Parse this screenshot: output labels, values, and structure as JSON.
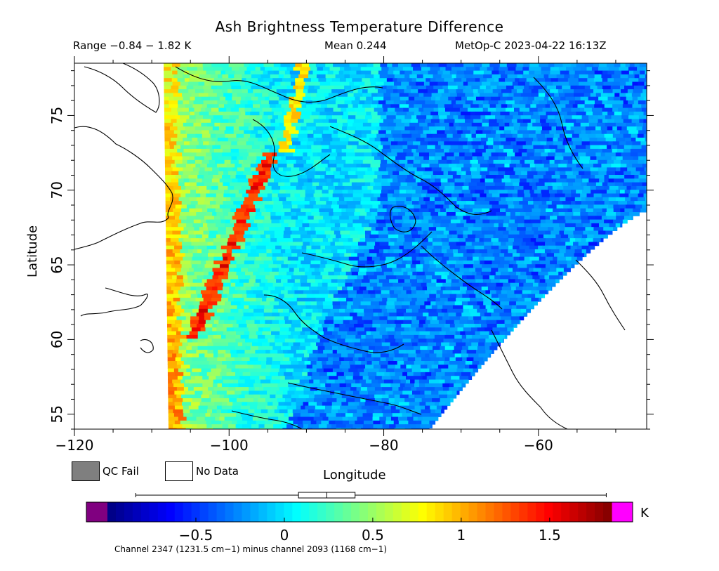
{
  "title": "Ash Brightness Temperature Difference",
  "header": {
    "range": "Range −0.84 − 1.82 K",
    "mean": "Mean 0.244",
    "satellite": "MetOp-C 2023-04-22 16:13Z"
  },
  "legend": {
    "qc_fail": "QC Fail",
    "no_data": "No Data",
    "qc_fail_color": "#7f7f7f",
    "no_data_color": "#ffffff"
  },
  "chart_data": {
    "type": "heatmap",
    "xlabel": "Longitude",
    "ylabel": "Latitude",
    "xlim": [
      -120,
      -46
    ],
    "ylim": [
      54,
      78.5
    ],
    "x_ticks": [
      -120,
      -100,
      -80,
      -60
    ],
    "x_tick_labels": [
      "−120",
      "−100",
      "−80",
      "−60"
    ],
    "y_ticks": [
      55,
      60,
      65,
      70,
      75
    ],
    "y_tick_labels": [
      "55",
      "60",
      "65",
      "70",
      "75"
    ],
    "value_range": [
      -0.84,
      1.82
    ],
    "mean": 0.244,
    "colorbar": {
      "min": -1.0,
      "max": 1.85,
      "ticks": [
        -0.5,
        0,
        0.5,
        1,
        1.5
      ],
      "tick_labels": [
        "−0.5",
        "0",
        "0.5",
        "1",
        "1.5"
      ],
      "unit": "K",
      "under_color": "#800080",
      "over_color": "#ff00ff",
      "stops": [
        "#000080",
        "#0000ff",
        "#0080ff",
        "#00ffff",
        "#80ff80",
        "#ffff00",
        "#ff8000",
        "#ff0000",
        "#800000"
      ],
      "boxplot": {
        "whisker_low": -0.84,
        "q1": 0.08,
        "median": 0.24,
        "q3": 0.4,
        "whisker_high": 1.82
      }
    },
    "description_note": "",
    "caption": "Channel 2347 (1231.5 cm−1) minus channel 2093 (1168 cm−1)"
  }
}
